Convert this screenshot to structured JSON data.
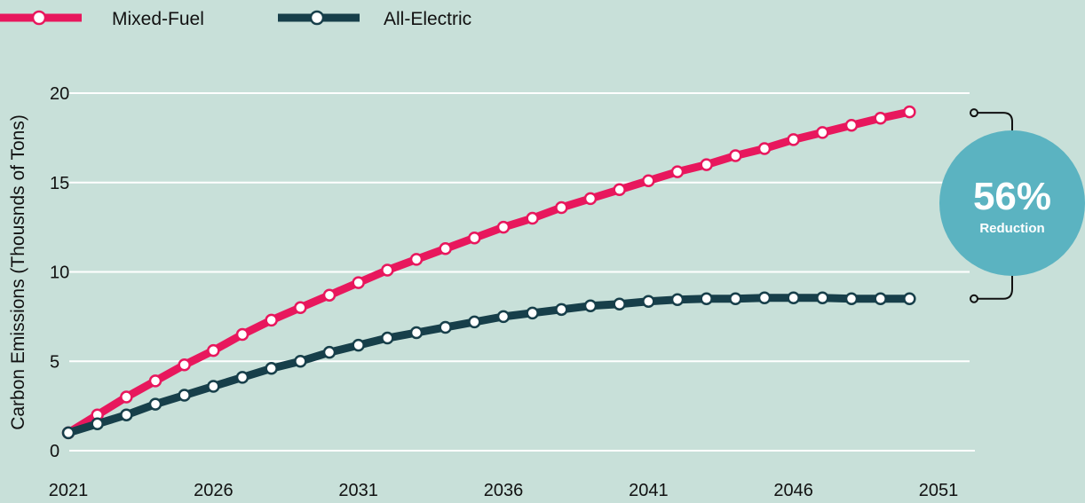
{
  "chart_data": {
    "type": "line",
    "ylabel": "Carbon Emissions (Thousnds of Tons)",
    "xlabel": "",
    "x": [
      2021,
      2022,
      2023,
      2024,
      2025,
      2026,
      2027,
      2028,
      2029,
      2030,
      2031,
      2032,
      2033,
      2034,
      2035,
      2036,
      2037,
      2038,
      2039,
      2040,
      2041,
      2042,
      2043,
      2044,
      2045,
      2046,
      2047,
      2048,
      2049,
      2050,
      2051
    ],
    "x_ticks": [
      "2021",
      "2026",
      "2031",
      "2036",
      "2041",
      "2046",
      "2051"
    ],
    "y_ticks": [
      "0",
      "5",
      "10",
      "15",
      "20"
    ],
    "ylim": [
      0,
      20
    ],
    "grid": true,
    "legend_position": "top-left",
    "series": [
      {
        "name": "Mixed-Fuel",
        "color": "#e8175d",
        "values": [
          1.0,
          2.0,
          3.0,
          3.9,
          4.8,
          5.6,
          6.5,
          7.3,
          8.0,
          8.7,
          9.4,
          10.1,
          10.7,
          11.3,
          11.9,
          12.5,
          13.0,
          13.6,
          14.1,
          14.6,
          15.1,
          15.6,
          16.0,
          16.5,
          16.9,
          17.4,
          17.8,
          18.2,
          18.6,
          18.95,
          null
        ]
      },
      {
        "name": "All-Electric",
        "color": "#173f4a",
        "values": [
          1.0,
          1.5,
          2.0,
          2.6,
          3.1,
          3.6,
          4.1,
          4.6,
          5.0,
          5.5,
          5.9,
          6.3,
          6.6,
          6.9,
          7.2,
          7.5,
          7.7,
          7.9,
          8.1,
          8.2,
          8.35,
          8.45,
          8.5,
          8.5,
          8.55,
          8.55,
          8.55,
          8.5,
          8.5,
          8.5,
          null
        ]
      }
    ],
    "annotation": {
      "value": "56%",
      "label": "Reduction",
      "color": "#5bb3c1"
    }
  }
}
